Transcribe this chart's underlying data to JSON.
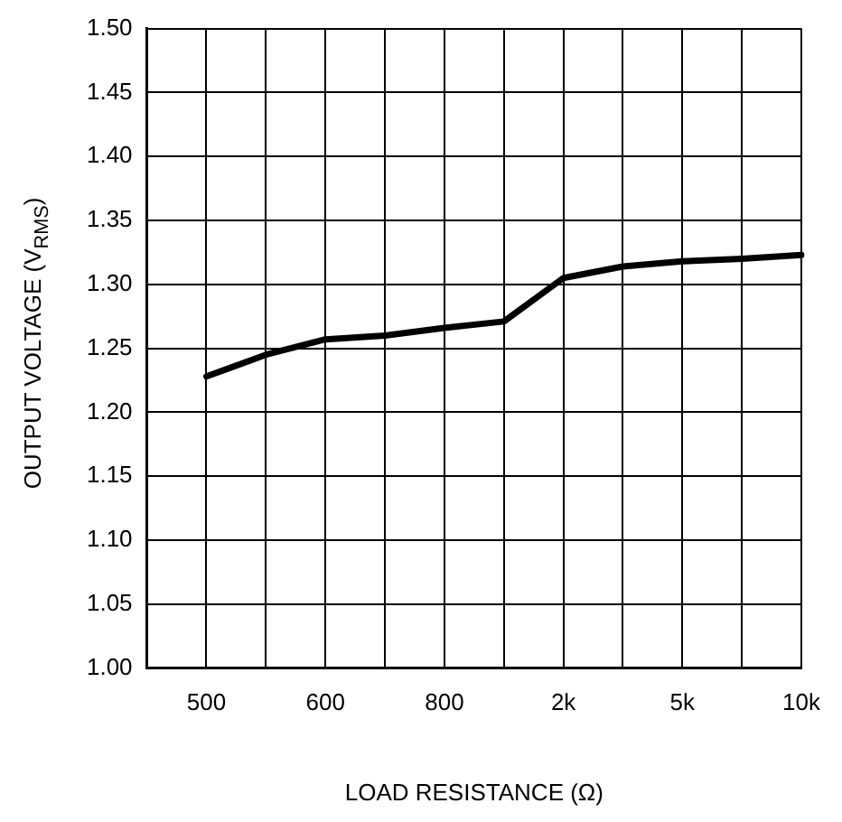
{
  "chart_data": {
    "type": "line",
    "xlabel": "LOAD RESISTANCE (Ω)",
    "ylabel": "OUTPUT VOLTAGE (V$_{RMS}$)",
    "categories": [
      null,
      "500",
      null,
      "600",
      null,
      "800",
      null,
      "2k",
      null,
      "5k",
      null,
      "10k"
    ],
    "series": [
      {
        "color": "#000000",
        "values": [
          null,
          1.228,
          1.245,
          1.257,
          1.26,
          1.266,
          1.271,
          1.305,
          1.314,
          1.318,
          1.32,
          1.323
        ]
      }
    ],
    "ylim": [
      1.0,
      1.5
    ],
    "yticks": [
      {
        "value": 1.0,
        "label": "1.00"
      },
      {
        "value": 1.05,
        "label": "1.05"
      },
      {
        "value": 1.1,
        "label": "1.10"
      },
      {
        "value": 1.15,
        "label": "1.15"
      },
      {
        "value": 1.2,
        "label": "1.20"
      },
      {
        "value": 1.25,
        "label": "1.25"
      },
      {
        "value": 1.3,
        "label": "1.30"
      },
      {
        "value": 1.35,
        "label": "1.35"
      },
      {
        "value": 1.4,
        "label": "1.40"
      },
      {
        "value": 1.45,
        "label": "1.45"
      },
      {
        "value": 1.5,
        "label": "1.50"
      }
    ],
    "grid": true,
    "legend": false,
    "marker": "none",
    "line_style": "solid"
  }
}
